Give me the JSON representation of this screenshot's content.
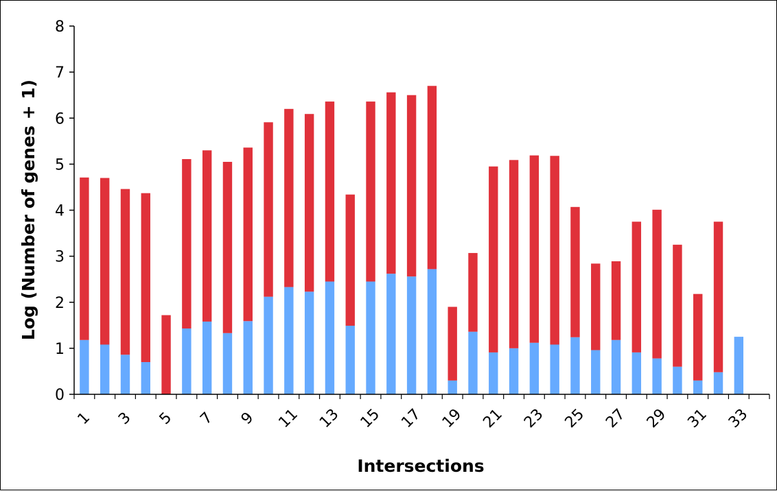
{
  "chart_data": {
    "type": "bar",
    "stacked": true,
    "title": "",
    "xlabel": "Intersections",
    "ylabel": "Log (Number of genes + 1)",
    "ylim": [
      0,
      8
    ],
    "yticks": [
      0,
      1,
      2,
      3,
      4,
      5,
      6,
      7,
      8
    ],
    "grid": false,
    "legend": "none",
    "categories": [
      1,
      2,
      3,
      4,
      5,
      6,
      7,
      8,
      9,
      10,
      11,
      12,
      13,
      14,
      15,
      16,
      17,
      18,
      19,
      20,
      21,
      22,
      23,
      24,
      25,
      26,
      27,
      28,
      29,
      30,
      31,
      32,
      33,
      34
    ],
    "xtick_labels": [
      "1",
      "3",
      "5",
      "7",
      "9",
      "11",
      "13",
      "15",
      "17",
      "19",
      "21",
      "23",
      "25",
      "27",
      "29",
      "31",
      "33"
    ],
    "series": [
      {
        "color": "#66aaff",
        "values": [
          1.18,
          1.08,
          0.86,
          0.7,
          0.0,
          1.43,
          1.58,
          1.33,
          1.59,
          2.12,
          2.33,
          2.23,
          2.45,
          1.49,
          2.45,
          2.62,
          2.56,
          2.72,
          0.3,
          1.36,
          0.91,
          1.0,
          1.12,
          1.08,
          1.24,
          0.96,
          1.18,
          0.91,
          0.78,
          0.6,
          0.3,
          0.48,
          1.25,
          0.0
        ]
      },
      {
        "color": "#e0313a",
        "values": [
          3.53,
          3.62,
          3.6,
          3.67,
          1.72,
          3.68,
          3.72,
          3.72,
          3.77,
          3.79,
          3.87,
          3.86,
          3.91,
          2.85,
          3.91,
          3.94,
          3.94,
          3.98,
          1.6,
          1.71,
          4.04,
          4.09,
          4.07,
          4.1,
          2.83,
          1.88,
          1.71,
          2.84,
          3.23,
          2.65,
          1.88,
          3.27,
          0.0,
          0.0
        ]
      }
    ]
  }
}
